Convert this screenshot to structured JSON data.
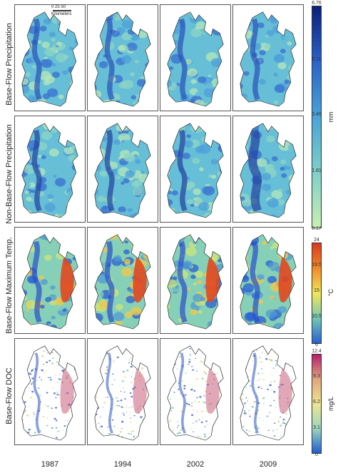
{
  "row_labels": [
    "Base-Flow Precipitation",
    "Non-Base-Flow Precipitation",
    "Base-Flow Maximum Temp.",
    "Base-Flow DOC"
  ],
  "years": [
    "1987",
    "1994",
    "2002",
    "2009"
  ],
  "scale_bar": {
    "ticks": "0  25  50",
    "label": "Kilometers"
  },
  "legends": [
    {
      "name": "precipitation",
      "unit": "mm",
      "ticks": [
        "6.76",
        "5.11",
        "3.46",
        "1.81",
        "0.17"
      ],
      "colors": [
        "#0b1f7a",
        "#2a63c8",
        "#4aa3d8",
        "#7fd0c8",
        "#c8efb4"
      ]
    },
    {
      "name": "temperature",
      "unit": "°C",
      "ticks": [
        "24",
        "19.5",
        "15",
        "10.5",
        "6"
      ],
      "colors": [
        "#d73a1e",
        "#f08a2a",
        "#f3e65a",
        "#73c7b3",
        "#2a5fd1"
      ]
    },
    {
      "name": "doc",
      "unit": "mg/L",
      "ticks": [
        "12.4",
        "9.3",
        "6.2",
        "3.1",
        "0"
      ],
      "colors": [
        "#b41f6e",
        "#e0a57e",
        "#efe594",
        "#9cd6bc",
        "#1f5fd0"
      ]
    }
  ],
  "rows": [
    {
      "palette": [
        "#3a6fd0",
        "#4e9fd9",
        "#66bfd6",
        "#8ed4c4",
        "#b5e7b8"
      ],
      "dark": "#2a50b8",
      "hot": ""
    },
    {
      "palette": [
        "#3a6fd0",
        "#4e9fd9",
        "#66bfd6",
        "#8ed4c4",
        "#b5e7b8"
      ],
      "dark": "#24409e",
      "hot": ""
    },
    {
      "palette": [
        "#2a5fd1",
        "#4f9bd3",
        "#86d0b8",
        "#cde57a",
        "#f0c84a"
      ],
      "dark": "#2a4fc8",
      "hot": "#e2471f"
    },
    {
      "palette": [
        "#ffffff"
      ],
      "dark": "#3d63c9",
      "hot": "#c85f7c"
    }
  ]
}
